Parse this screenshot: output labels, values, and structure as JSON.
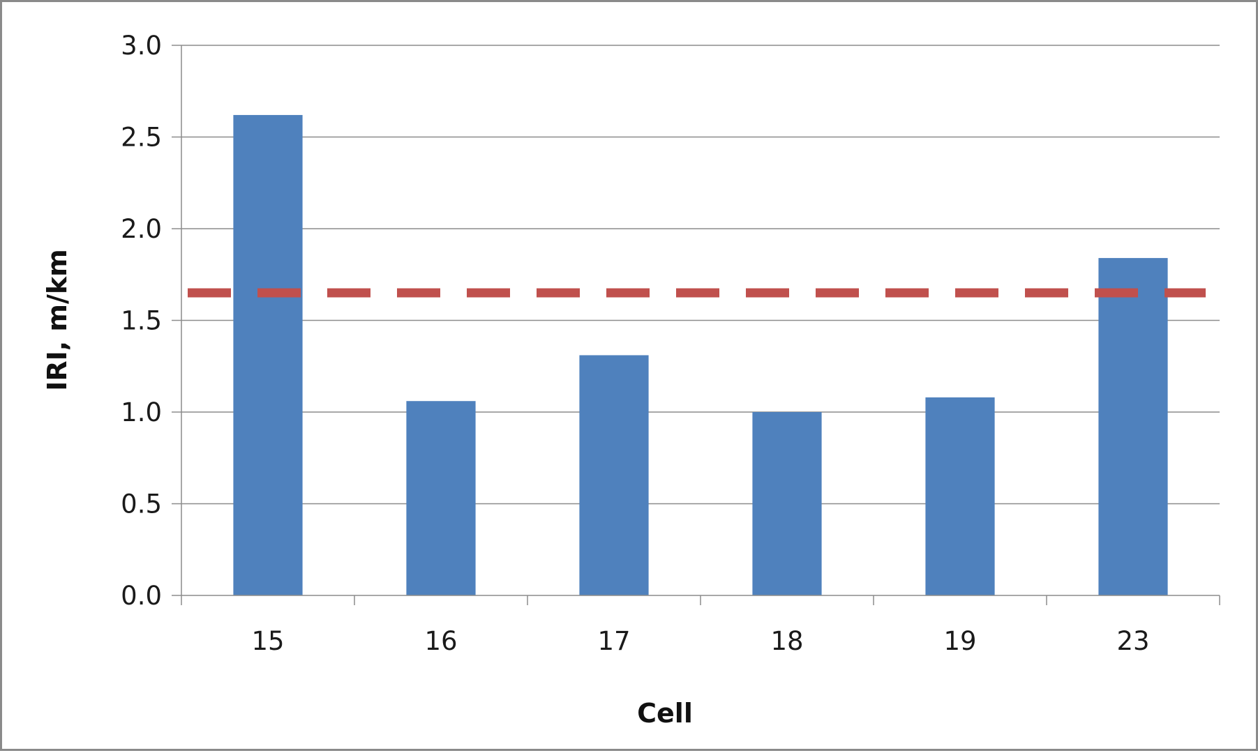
{
  "chart_data": {
    "type": "bar",
    "title": "",
    "xlabel": "Cell",
    "ylabel": "IRI, m/km",
    "categories": [
      "15",
      "16",
      "17",
      "18",
      "19",
      "23"
    ],
    "values": [
      2.62,
      1.06,
      1.31,
      1.0,
      1.08,
      1.84
    ],
    "ylim": [
      0,
      3.0
    ],
    "yticks": [
      0.0,
      0.5,
      1.0,
      1.5,
      2.0,
      2.5,
      3.0
    ],
    "ytick_labels": [
      "0.0",
      "0.5",
      "1.0",
      "1.5",
      "2.0",
      "2.5",
      "3.0"
    ],
    "grid": true,
    "legend": "none",
    "reference_line": {
      "y": 1.65,
      "style": "dashed"
    },
    "colors": {
      "bar": "#4f81bd",
      "reference_line": "#c0504d",
      "grid": "#8c8c8c",
      "frame": "#8a8a8a"
    }
  }
}
